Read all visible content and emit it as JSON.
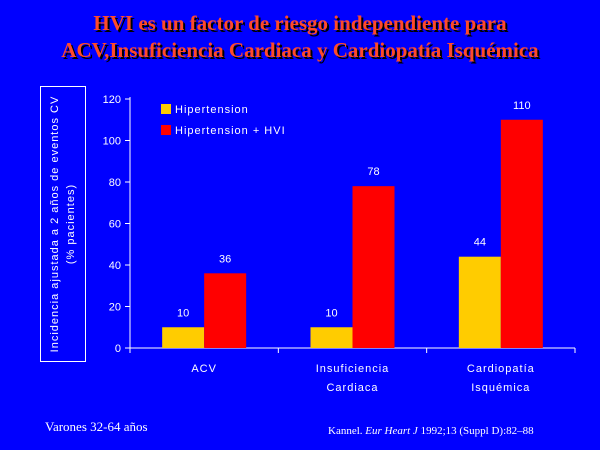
{
  "title_line1": "HVI es un factor de riesgo independiente para",
  "title_line2": "ACV,Insuficiencia Cardiaca y Cardiopatía Isquémica",
  "ylabel_line1": "Incidencia ajustada a 2  años de eventos CV",
  "ylabel_line2": "(% pacientes)",
  "footer_left": "Varones 32-64 años",
  "citation": {
    "author": "Kannel.",
    "journal": "Eur Heart J",
    "rest": "1992;13 (Suppl D):82–88"
  },
  "chart_data": {
    "type": "bar",
    "categories": [
      [
        "ACV"
      ],
      [
        "Insuficiencia",
        "Cardiaca"
      ],
      [
        "Cardiopatía",
        "Isquémica"
      ]
    ],
    "series": [
      {
        "name": "Hipertension",
        "values": [
          10,
          10,
          44
        ],
        "color": "#ffcc00"
      },
      {
        "name": "Hipertension + HVI",
        "values": [
          36,
          78,
          110
        ],
        "color": "#ff0000"
      }
    ],
    "ylim": [
      0,
      120
    ],
    "yticks": [
      0,
      20,
      40,
      60,
      80,
      100,
      120
    ],
    "legend": "top-left",
    "grid": false
  }
}
